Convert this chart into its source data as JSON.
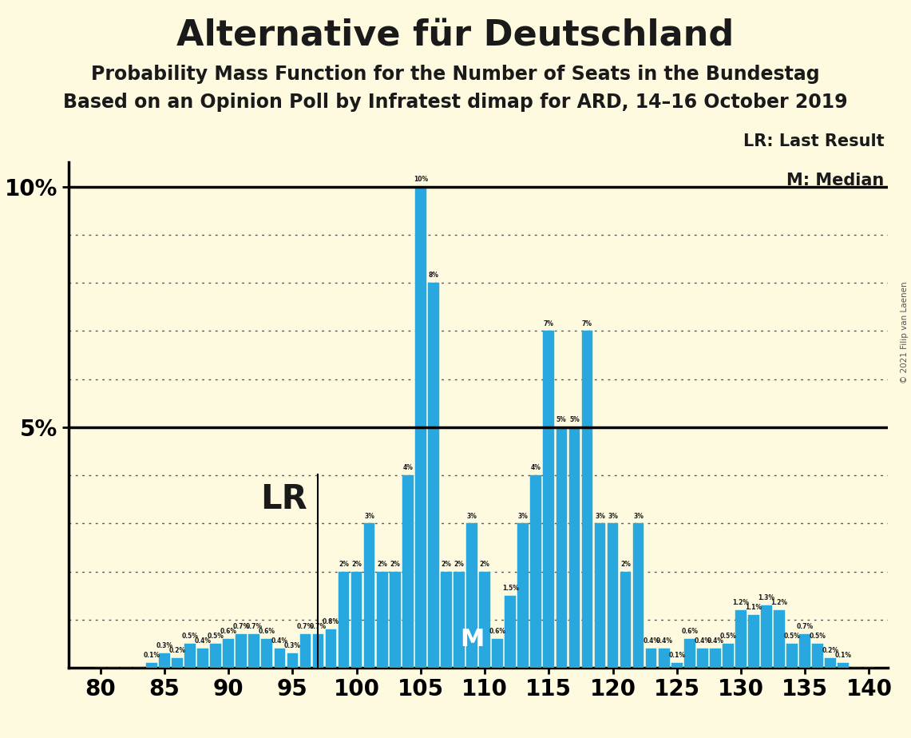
{
  "title": "Alternative für Deutschland",
  "subtitle1": "Probability Mass Function for the Number of Seats in the Bundestag",
  "subtitle2": "Based on an Opinion Poll by Infratest dimap for ARD, 14–16 October 2019",
  "background_color": "#FEFAE0",
  "bar_color": "#29A8E0",
  "title_fontsize": 32,
  "subtitle_fontsize": 17,
  "seats": [
    80,
    81,
    82,
    83,
    84,
    85,
    86,
    87,
    88,
    89,
    90,
    91,
    92,
    93,
    94,
    95,
    96,
    97,
    98,
    99,
    100,
    101,
    102,
    103,
    104,
    105,
    106,
    107,
    108,
    109,
    110,
    111,
    112,
    113,
    114,
    115,
    116,
    117,
    118,
    119,
    120,
    121,
    122,
    123,
    124,
    125,
    126,
    127,
    128,
    129,
    130,
    131,
    132,
    133,
    134,
    135,
    136,
    137,
    138,
    139,
    140
  ],
  "values": [
    0.0,
    0.0,
    0.0,
    0.0,
    0.1,
    0.3,
    0.2,
    0.5,
    0.4,
    0.5,
    0.6,
    0.7,
    0.7,
    0.6,
    0.4,
    0.3,
    0.7,
    0.7,
    0.8,
    2.0,
    2.0,
    3.0,
    2.0,
    2.0,
    4.0,
    10.0,
    8.0,
    2.0,
    2.0,
    3.0,
    2.0,
    0.6,
    1.5,
    3.0,
    4.0,
    7.0,
    5.0,
    5.0,
    7.0,
    3.0,
    3.0,
    2.0,
    3.0,
    0.4,
    0.4,
    0.1,
    0.6,
    0.4,
    0.4,
    0.5,
    1.2,
    1.1,
    1.3,
    1.2,
    0.5,
    0.7,
    0.5,
    0.2,
    0.1,
    0.0,
    0.0
  ],
  "lr_seat": 97,
  "median_seat": 109,
  "copyright_text": "© 2021 Filip van Laenen"
}
